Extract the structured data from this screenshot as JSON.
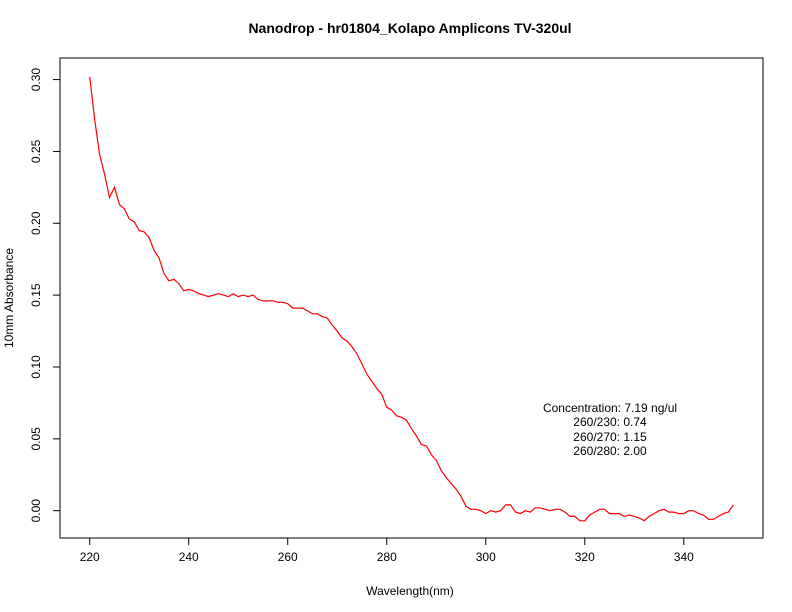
{
  "chart_data": {
    "type": "line",
    "title": "Nanodrop - hr01804_Kolapo Amplicons TV-320ul",
    "xlabel": "Wavelength(nm)",
    "ylabel": "10mm Absorbance",
    "xlim": [
      214,
      356
    ],
    "ylim": [
      -0.019,
      0.315
    ],
    "xticks": [
      220,
      240,
      260,
      280,
      300,
      320,
      340
    ],
    "yticks": [
      0.0,
      0.05,
      0.1,
      0.15,
      0.2,
      0.25,
      0.3
    ],
    "ytick_labels": [
      "0.00",
      "0.05",
      "0.10",
      "0.15",
      "0.20",
      "0.25",
      "0.30"
    ],
    "grid": false,
    "line_color": "#ff0000",
    "series": [
      {
        "x": [
          220,
          221,
          222,
          223,
          224,
          225,
          226,
          227,
          228,
          229,
          230,
          231,
          232,
          233,
          234,
          235,
          236,
          237,
          238,
          239,
          240,
          241,
          242,
          243,
          244,
          245,
          246,
          247,
          248,
          249,
          250,
          251,
          252,
          253,
          254,
          255,
          256,
          257,
          258,
          259,
          260,
          261,
          262,
          263,
          264,
          265,
          266,
          267,
          268,
          269,
          270,
          271,
          272,
          273,
          274,
          275,
          276,
          277,
          278,
          279,
          280,
          281,
          282,
          283,
          284,
          285,
          286,
          287,
          288,
          289,
          290,
          291,
          292,
          293,
          294,
          295,
          296,
          297,
          298,
          299,
          300,
          301,
          302,
          303,
          304,
          305,
          306,
          307,
          308,
          309,
          310,
          311,
          312,
          313,
          314,
          315,
          316,
          317,
          318,
          319,
          320,
          321,
          322,
          323,
          324,
          325,
          326,
          327,
          328,
          329,
          330,
          331,
          332,
          333,
          334,
          335,
          336,
          337,
          338,
          339,
          340,
          341,
          342,
          343,
          344,
          345,
          346,
          347,
          348,
          349,
          350
        ],
        "y": [
          0.302,
          0.272,
          0.248,
          0.234,
          0.218,
          0.225,
          0.213,
          0.21,
          0.203,
          0.201,
          0.195,
          0.194,
          0.19,
          0.181,
          0.176,
          0.165,
          0.16,
          0.161,
          0.158,
          0.153,
          0.154,
          0.153,
          0.151,
          0.15,
          0.149,
          0.15,
          0.151,
          0.15,
          0.149,
          0.151,
          0.149,
          0.15,
          0.149,
          0.15,
          0.147,
          0.146,
          0.146,
          0.146,
          0.145,
          0.145,
          0.144,
          0.141,
          0.141,
          0.141,
          0.139,
          0.137,
          0.137,
          0.135,
          0.134,
          0.129,
          0.125,
          0.12,
          0.118,
          0.114,
          0.109,
          0.102,
          0.095,
          0.09,
          0.085,
          0.081,
          0.072,
          0.07,
          0.066,
          0.065,
          0.063,
          0.057,
          0.052,
          0.046,
          0.045,
          0.039,
          0.035,
          0.028,
          0.023,
          0.019,
          0.015,
          0.01,
          0.003,
          0.001,
          0.001,
          0.0,
          -0.002,
          0.0,
          -0.001,
          0.0,
          0.004,
          0.004,
          -0.001,
          -0.002,
          0.0,
          -0.001,
          0.002,
          0.002,
          0.001,
          0.0,
          0.001,
          0.001,
          -0.001,
          -0.004,
          -0.004,
          -0.007,
          -0.007,
          -0.003,
          -0.001,
          0.001,
          0.001,
          -0.002,
          -0.002,
          -0.002,
          -0.004,
          -0.003,
          -0.004,
          -0.005,
          -0.007,
          -0.004,
          -0.002,
          0.0,
          0.001,
          -0.001,
          -0.001,
          -0.002,
          -0.002,
          0.0,
          0.0,
          -0.002,
          -0.003,
          -0.006,
          -0.006,
          -0.004,
          -0.002,
          -0.001,
          0.004
        ]
      }
    ],
    "annotations": [
      "Concentration: 7.19 ng/ul",
      "260/230: 0.74",
      "260/270: 1.15",
      "260/280: 2.00"
    ]
  }
}
